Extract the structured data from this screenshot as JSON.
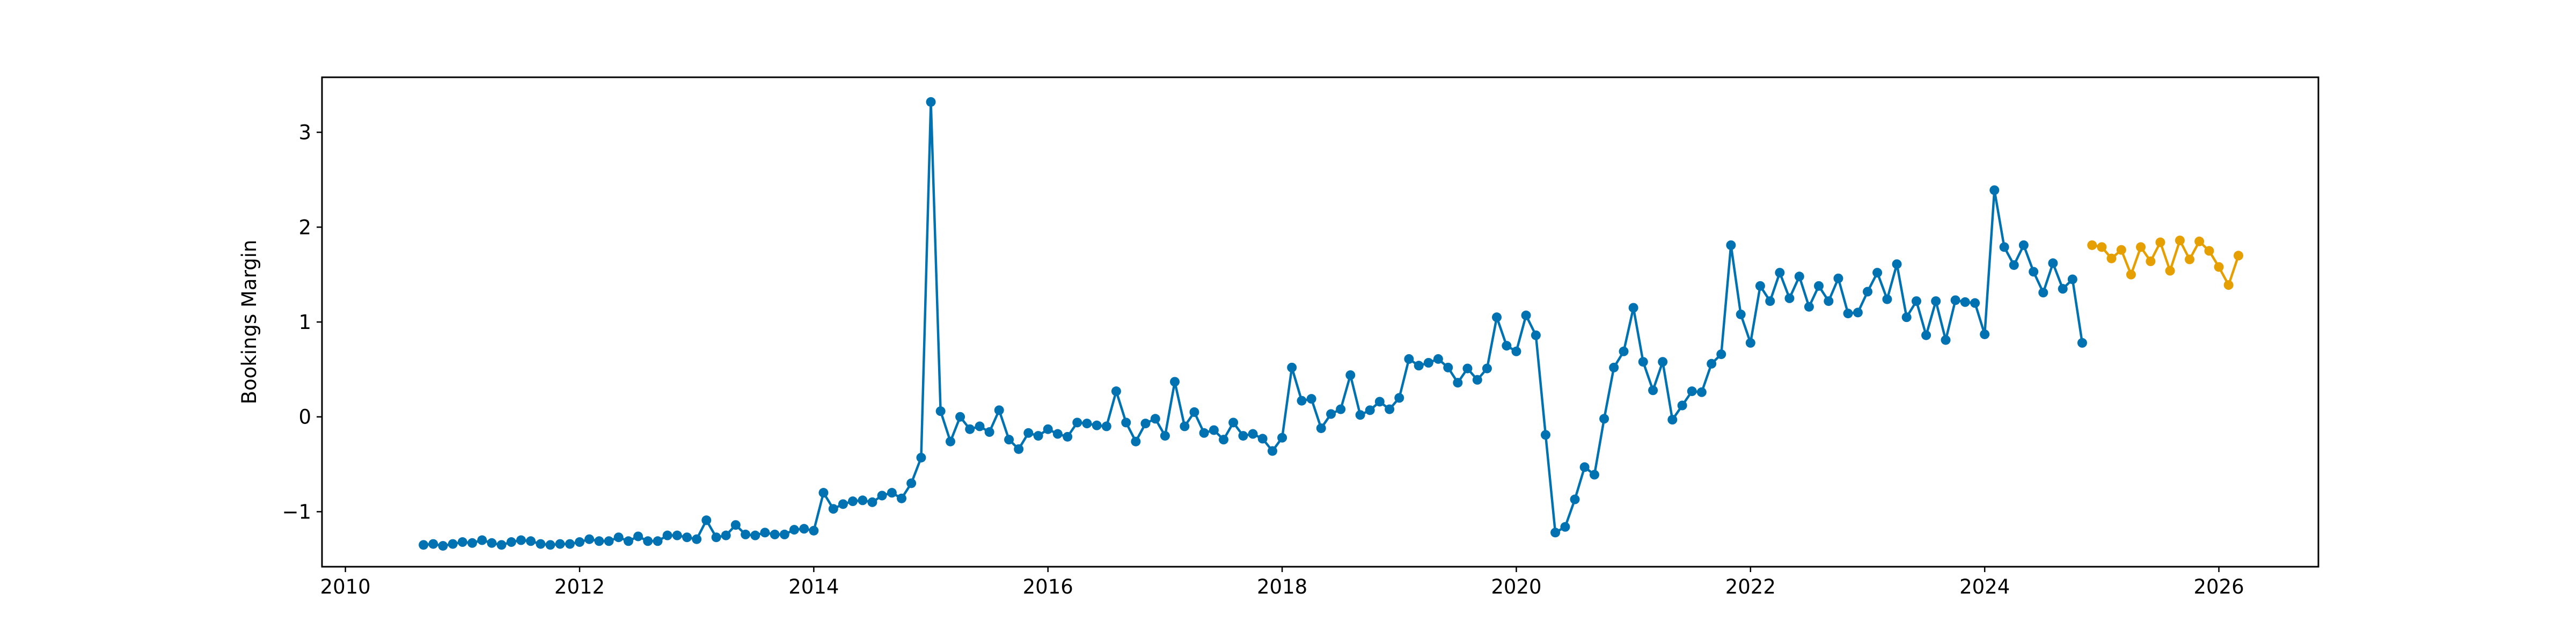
{
  "chart_data": {
    "type": "line",
    "title": "",
    "xlabel": "",
    "ylabel": "Bookings Margin",
    "xlim": [
      2009.8,
      2026.85
    ],
    "ylim": [
      -1.58,
      3.58
    ],
    "x_ticks": [
      2010,
      2012,
      2014,
      2016,
      2018,
      2020,
      2022,
      2024,
      2026
    ],
    "y_ticks": [
      -1,
      0,
      1,
      2,
      3
    ],
    "y_tick_labels": [
      "−1",
      "0",
      "1",
      "2",
      "3"
    ],
    "grid": false,
    "legend": "none",
    "series": [
      {
        "color": "#0072b2",
        "marker": "circle",
        "values": [
          [
            2010.667,
            -1.35
          ],
          [
            2010.75,
            -1.34
          ],
          [
            2010.833,
            -1.36
          ],
          [
            2010.917,
            -1.34
          ],
          [
            2011.0,
            -1.32
          ],
          [
            2011.083,
            -1.33
          ],
          [
            2011.167,
            -1.3
          ],
          [
            2011.25,
            -1.33
          ],
          [
            2011.333,
            -1.35
          ],
          [
            2011.417,
            -1.32
          ],
          [
            2011.5,
            -1.3
          ],
          [
            2011.583,
            -1.31
          ],
          [
            2011.667,
            -1.34
          ],
          [
            2011.75,
            -1.35
          ],
          [
            2011.833,
            -1.34
          ],
          [
            2011.917,
            -1.34
          ],
          [
            2012.0,
            -1.32
          ],
          [
            2012.083,
            -1.29
          ],
          [
            2012.167,
            -1.31
          ],
          [
            2012.25,
            -1.31
          ],
          [
            2012.333,
            -1.27
          ],
          [
            2012.417,
            -1.31
          ],
          [
            2012.5,
            -1.26
          ],
          [
            2012.583,
            -1.31
          ],
          [
            2012.667,
            -1.31
          ],
          [
            2012.75,
            -1.25
          ],
          [
            2012.833,
            -1.25
          ],
          [
            2012.917,
            -1.27
          ],
          [
            2013.0,
            -1.29
          ],
          [
            2013.083,
            -1.09
          ],
          [
            2013.167,
            -1.27
          ],
          [
            2013.25,
            -1.25
          ],
          [
            2013.333,
            -1.14
          ],
          [
            2013.417,
            -1.24
          ],
          [
            2013.5,
            -1.25
          ],
          [
            2013.583,
            -1.22
          ],
          [
            2013.667,
            -1.24
          ],
          [
            2013.75,
            -1.24
          ],
          [
            2013.833,
            -1.19
          ],
          [
            2013.917,
            -1.18
          ],
          [
            2014.0,
            -1.2
          ],
          [
            2014.083,
            -0.8
          ],
          [
            2014.167,
            -0.97
          ],
          [
            2014.25,
            -0.92
          ],
          [
            2014.333,
            -0.89
          ],
          [
            2014.417,
            -0.88
          ],
          [
            2014.5,
            -0.9
          ],
          [
            2014.583,
            -0.83
          ],
          [
            2014.667,
            -0.8
          ],
          [
            2014.75,
            -0.86
          ],
          [
            2014.833,
            -0.7
          ],
          [
            2014.917,
            -0.43
          ],
          [
            2015.0,
            3.32
          ],
          [
            2015.083,
            0.06
          ],
          [
            2015.167,
            -0.26
          ],
          [
            2015.25,
            0.0
          ],
          [
            2015.333,
            -0.13
          ],
          [
            2015.417,
            -0.1
          ],
          [
            2015.5,
            -0.16
          ],
          [
            2015.583,
            0.07
          ],
          [
            2015.667,
            -0.24
          ],
          [
            2015.75,
            -0.34
          ],
          [
            2015.833,
            -0.17
          ],
          [
            2015.917,
            -0.2
          ],
          [
            2016.0,
            -0.13
          ],
          [
            2016.083,
            -0.18
          ],
          [
            2016.167,
            -0.21
          ],
          [
            2016.25,
            -0.06
          ],
          [
            2016.333,
            -0.07
          ],
          [
            2016.417,
            -0.09
          ],
          [
            2016.5,
            -0.1
          ],
          [
            2016.583,
            0.27
          ],
          [
            2016.667,
            -0.06
          ],
          [
            2016.75,
            -0.26
          ],
          [
            2016.833,
            -0.07
          ],
          [
            2016.917,
            -0.02
          ],
          [
            2017.0,
            -0.2
          ],
          [
            2017.083,
            0.37
          ],
          [
            2017.167,
            -0.1
          ],
          [
            2017.25,
            0.05
          ],
          [
            2017.333,
            -0.17
          ],
          [
            2017.417,
            -0.14
          ],
          [
            2017.5,
            -0.24
          ],
          [
            2017.583,
            -0.06
          ],
          [
            2017.667,
            -0.2
          ],
          [
            2017.75,
            -0.18
          ],
          [
            2017.833,
            -0.23
          ],
          [
            2017.917,
            -0.36
          ],
          [
            2018.0,
            -0.22
          ],
          [
            2018.083,
            0.52
          ],
          [
            2018.167,
            0.17
          ],
          [
            2018.25,
            0.19
          ],
          [
            2018.333,
            -0.12
          ],
          [
            2018.417,
            0.03
          ],
          [
            2018.5,
            0.08
          ],
          [
            2018.583,
            0.44
          ],
          [
            2018.667,
            0.02
          ],
          [
            2018.75,
            0.07
          ],
          [
            2018.833,
            0.16
          ],
          [
            2018.917,
            0.08
          ],
          [
            2019.0,
            0.2
          ],
          [
            2019.083,
            0.61
          ],
          [
            2019.167,
            0.54
          ],
          [
            2019.25,
            0.57
          ],
          [
            2019.333,
            0.61
          ],
          [
            2019.417,
            0.52
          ],
          [
            2019.5,
            0.36
          ],
          [
            2019.583,
            0.51
          ],
          [
            2019.667,
            0.39
          ],
          [
            2019.75,
            0.51
          ],
          [
            2019.833,
            1.05
          ],
          [
            2019.917,
            0.75
          ],
          [
            2020.0,
            0.69
          ],
          [
            2020.083,
            1.07
          ],
          [
            2020.167,
            0.86
          ],
          [
            2020.25,
            -0.19
          ],
          [
            2020.333,
            -1.22
          ],
          [
            2020.417,
            -1.16
          ],
          [
            2020.5,
            -0.87
          ],
          [
            2020.583,
            -0.53
          ],
          [
            2020.667,
            -0.61
          ],
          [
            2020.75,
            -0.02
          ],
          [
            2020.833,
            0.52
          ],
          [
            2020.917,
            0.69
          ],
          [
            2021.0,
            1.15
          ],
          [
            2021.083,
            0.58
          ],
          [
            2021.167,
            0.28
          ],
          [
            2021.25,
            0.58
          ],
          [
            2021.333,
            -0.03
          ],
          [
            2021.417,
            0.12
          ],
          [
            2021.5,
            0.27
          ],
          [
            2021.583,
            0.26
          ],
          [
            2021.667,
            0.56
          ],
          [
            2021.75,
            0.66
          ],
          [
            2021.833,
            1.81
          ],
          [
            2021.917,
            1.08
          ],
          [
            2022.0,
            0.78
          ],
          [
            2022.083,
            1.38
          ],
          [
            2022.167,
            1.22
          ],
          [
            2022.25,
            1.52
          ],
          [
            2022.333,
            1.25
          ],
          [
            2022.417,
            1.48
          ],
          [
            2022.5,
            1.16
          ],
          [
            2022.583,
            1.38
          ],
          [
            2022.667,
            1.22
          ],
          [
            2022.75,
            1.46
          ],
          [
            2022.833,
            1.09
          ],
          [
            2022.917,
            1.1
          ],
          [
            2023.0,
            1.32
          ],
          [
            2023.083,
            1.52
          ],
          [
            2023.167,
            1.24
          ],
          [
            2023.25,
            1.61
          ],
          [
            2023.333,
            1.05
          ],
          [
            2023.417,
            1.22
          ],
          [
            2023.5,
            0.86
          ],
          [
            2023.583,
            1.22
          ],
          [
            2023.667,
            0.81
          ],
          [
            2023.75,
            1.23
          ],
          [
            2023.833,
            1.21
          ],
          [
            2023.917,
            1.2
          ],
          [
            2024.0,
            0.87
          ],
          [
            2024.083,
            2.39
          ],
          [
            2024.167,
            1.79
          ],
          [
            2024.25,
            1.6
          ],
          [
            2024.333,
            1.81
          ],
          [
            2024.417,
            1.53
          ],
          [
            2024.5,
            1.31
          ],
          [
            2024.583,
            1.62
          ],
          [
            2024.667,
            1.35
          ],
          [
            2024.75,
            1.45
          ],
          [
            2024.833,
            0.78
          ]
        ]
      },
      {
        "color": "#e69f00",
        "marker": "circle",
        "values": [
          [
            2024.917,
            1.81
          ],
          [
            2025.0,
            1.79
          ],
          [
            2025.083,
            1.67
          ],
          [
            2025.167,
            1.76
          ],
          [
            2025.25,
            1.5
          ],
          [
            2025.333,
            1.79
          ],
          [
            2025.417,
            1.64
          ],
          [
            2025.5,
            1.84
          ],
          [
            2025.583,
            1.54
          ],
          [
            2025.667,
            1.86
          ],
          [
            2025.75,
            1.66
          ],
          [
            2025.833,
            1.85
          ],
          [
            2025.917,
            1.75
          ],
          [
            2026.0,
            1.58
          ],
          [
            2026.083,
            1.39
          ],
          [
            2026.167,
            1.7
          ]
        ]
      }
    ]
  }
}
